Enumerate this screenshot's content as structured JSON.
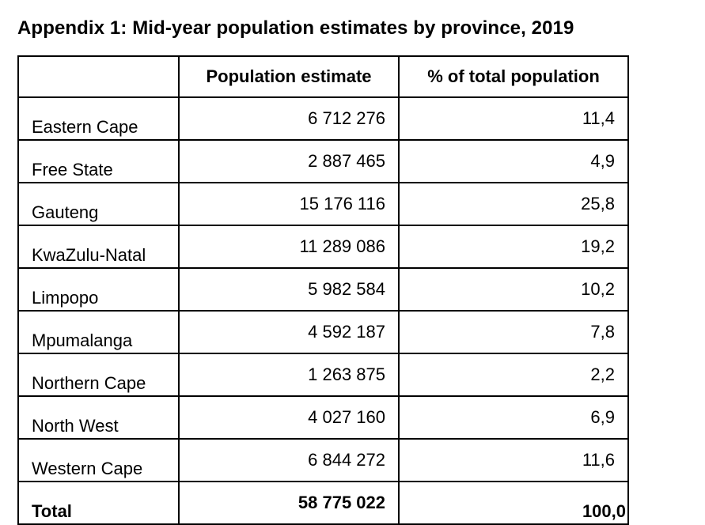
{
  "title": "Appendix 1: Mid-year population estimates by province, 2019",
  "table": {
    "headers": [
      "",
      "Population estimate",
      "% of total population"
    ],
    "rows": [
      {
        "province": "Eastern Cape",
        "population": "6 712 276",
        "percent": "11,4"
      },
      {
        "province": "Free State",
        "population": "2 887 465",
        "percent": "4,9"
      },
      {
        "province": "Gauteng",
        "population": "15 176 116",
        "percent": "25,8"
      },
      {
        "province": "KwaZulu-Natal",
        "population": "11 289 086",
        "percent": "19,2"
      },
      {
        "province": "Limpopo",
        "population": "5 982 584",
        "percent": "10,2"
      },
      {
        "province": "Mpumalanga",
        "population": "4 592 187",
        "percent": "7,8"
      },
      {
        "province": "Northern Cape",
        "population": "1 263 875",
        "percent": "2,2"
      },
      {
        "province": "North West",
        "population": "4 027 160",
        "percent": "6,9"
      },
      {
        "province": "Western Cape",
        "population": "6 844 272",
        "percent": "11,6"
      }
    ],
    "total": {
      "label": "Total",
      "population": "58 775 022",
      "percent": "100,0"
    }
  }
}
